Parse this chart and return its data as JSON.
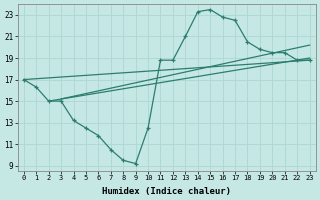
{
  "title": "",
  "xlabel": "Humidex (Indice chaleur)",
  "ylabel": "",
  "bg_color": "#c5e8e5",
  "grid_color": "#b0d8d5",
  "line_color": "#2d7d6e",
  "xlim": [
    -0.5,
    23.5
  ],
  "ylim": [
    8.5,
    24.0
  ],
  "xticks": [
    0,
    1,
    2,
    3,
    4,
    5,
    6,
    7,
    8,
    9,
    10,
    11,
    12,
    13,
    14,
    15,
    16,
    17,
    18,
    19,
    20,
    21,
    22,
    23
  ],
  "yticks": [
    9,
    11,
    13,
    15,
    17,
    19,
    21,
    23
  ],
  "curve1_x": [
    0,
    1,
    2,
    3,
    4,
    5,
    6,
    7,
    8,
    9,
    10,
    11,
    12,
    13,
    14,
    15,
    16,
    17,
    18,
    19,
    20,
    21,
    22,
    23
  ],
  "curve1_y": [
    17.0,
    16.3,
    15.0,
    15.0,
    13.2,
    12.5,
    11.8,
    10.5,
    9.5,
    9.2,
    12.5,
    18.8,
    18.8,
    21.0,
    23.3,
    23.5,
    22.8,
    22.5,
    20.5,
    19.8,
    19.5,
    19.5,
    18.8,
    18.8
  ],
  "line1_x": [
    0,
    23
  ],
  "line1_y": [
    17.0,
    18.8
  ],
  "line2_x": [
    2,
    23
  ],
  "line2_y": [
    15.0,
    19.0
  ],
  "line3_x": [
    3,
    23
  ],
  "line3_y": [
    15.2,
    20.2
  ],
  "figsize": [
    3.2,
    2.0
  ],
  "dpi": 100
}
